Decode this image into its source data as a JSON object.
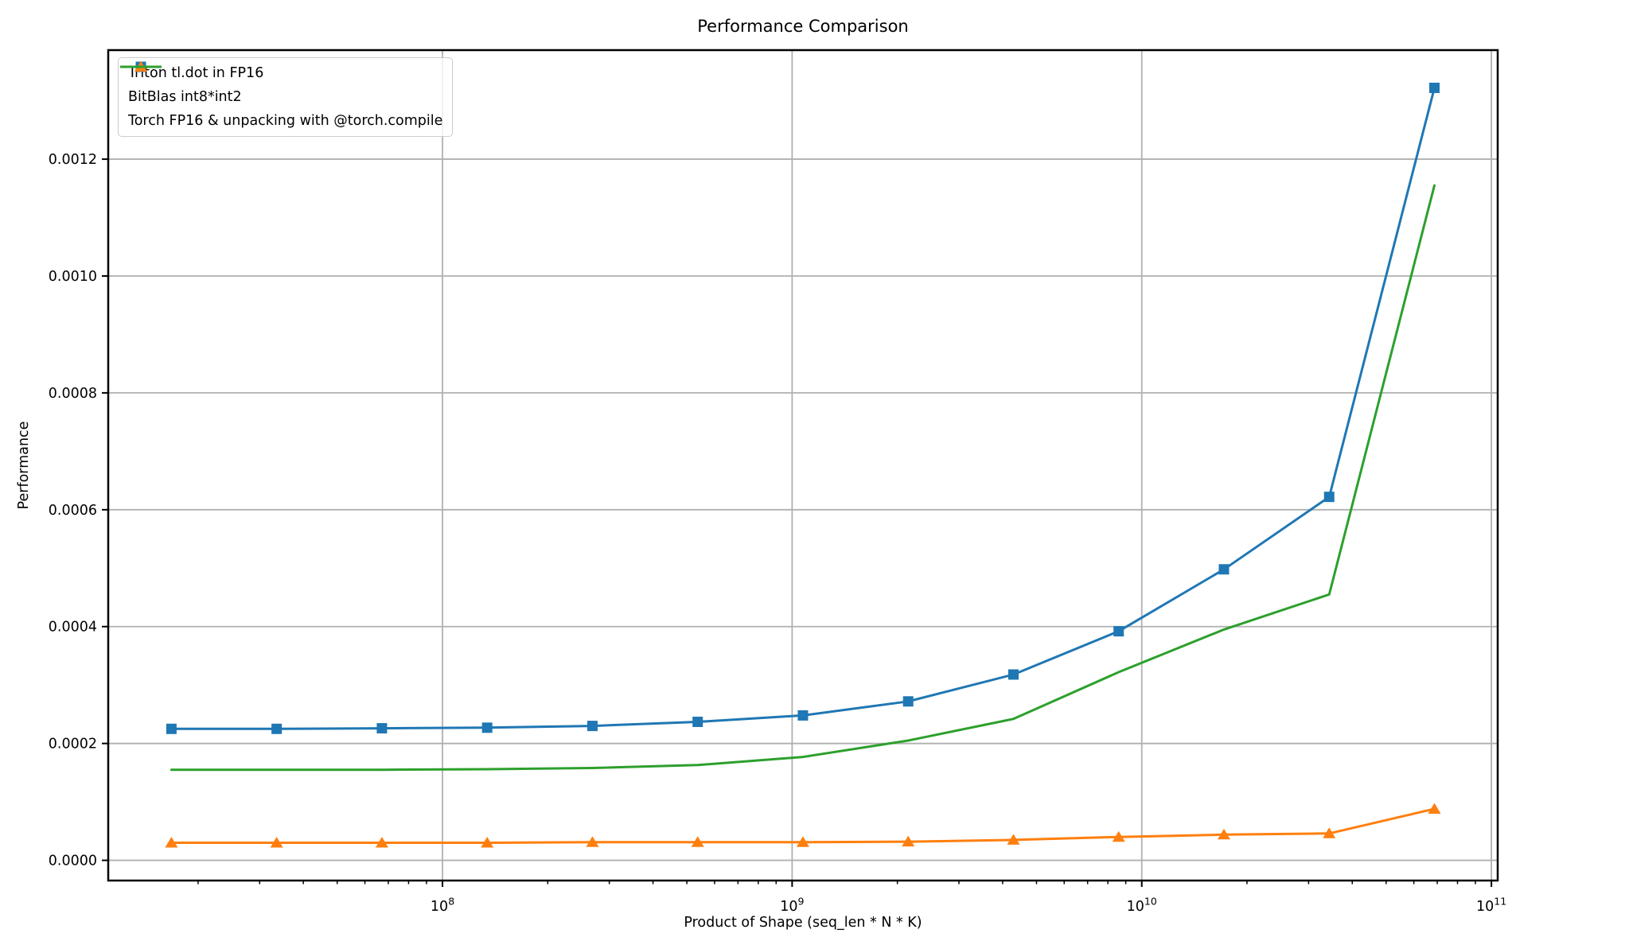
{
  "chart_data": {
    "type": "line",
    "title": "Performance Comparison",
    "xlabel": "Product of Shape (seq_len * N * K)",
    "ylabel": "Performance",
    "x_scale": "log10",
    "grid": true,
    "grid_color": "#b0b0b0",
    "background": "#ffffff",
    "legend_position": "upper-left",
    "xlim_log10": [
      7.044,
      11.018
    ],
    "ylim": [
      -3.46e-05,
      0.0013866
    ],
    "x_ticks": [
      {
        "log10": 8,
        "base": "10",
        "exp": "8"
      },
      {
        "log10": 9,
        "base": "10",
        "exp": "9"
      },
      {
        "log10": 10,
        "base": "10",
        "exp": "10"
      },
      {
        "log10": 11,
        "base": "10",
        "exp": "11"
      }
    ],
    "y_ticks": [
      {
        "value": 0.0,
        "label": "0.0000"
      },
      {
        "value": 0.0002,
        "label": "0.0002"
      },
      {
        "value": 0.0004,
        "label": "0.0004"
      },
      {
        "value": 0.0006,
        "label": "0.0006"
      },
      {
        "value": 0.0008,
        "label": "0.0008"
      },
      {
        "value": 0.001,
        "label": "0.0010"
      },
      {
        "value": 0.0012,
        "label": "0.0012"
      }
    ],
    "x": [
      16777216,
      33554432,
      67108864,
      134217728,
      268435456,
      536870912,
      1073741824,
      2147483648,
      4294967296,
      8589934592,
      17179869184,
      34359738368,
      68719476736
    ],
    "series": [
      {
        "name": "Triton tl.dot in FP16",
        "color": "#1f77b4",
        "marker": "square",
        "values": [
          0.000225,
          0.000225,
          0.000226,
          0.000227,
          0.00023,
          0.000237,
          0.000248,
          0.000272,
          0.000318,
          0.000392,
          0.000498,
          0.000622,
          0.001322
        ]
      },
      {
        "name": "BitBlas int8*int2",
        "color": "#ff7f0e",
        "marker": "triangle",
        "values": [
          3e-05,
          3e-05,
          3e-05,
          3e-05,
          3.1e-05,
          3.1e-05,
          3.1e-05,
          3.2e-05,
          3.5e-05,
          4e-05,
          4.4e-05,
          4.6e-05,
          8.8e-05
        ]
      },
      {
        "name": "Torch FP16 & unpacking with @torch.compile",
        "color": "#2ca02c",
        "marker": "none",
        "values": [
          0.000155,
          0.000155,
          0.000155,
          0.000156,
          0.000158,
          0.000163,
          0.000177,
          0.000205,
          0.000242,
          0.000322,
          0.000395,
          0.000455,
          0.001155
        ]
      }
    ]
  }
}
